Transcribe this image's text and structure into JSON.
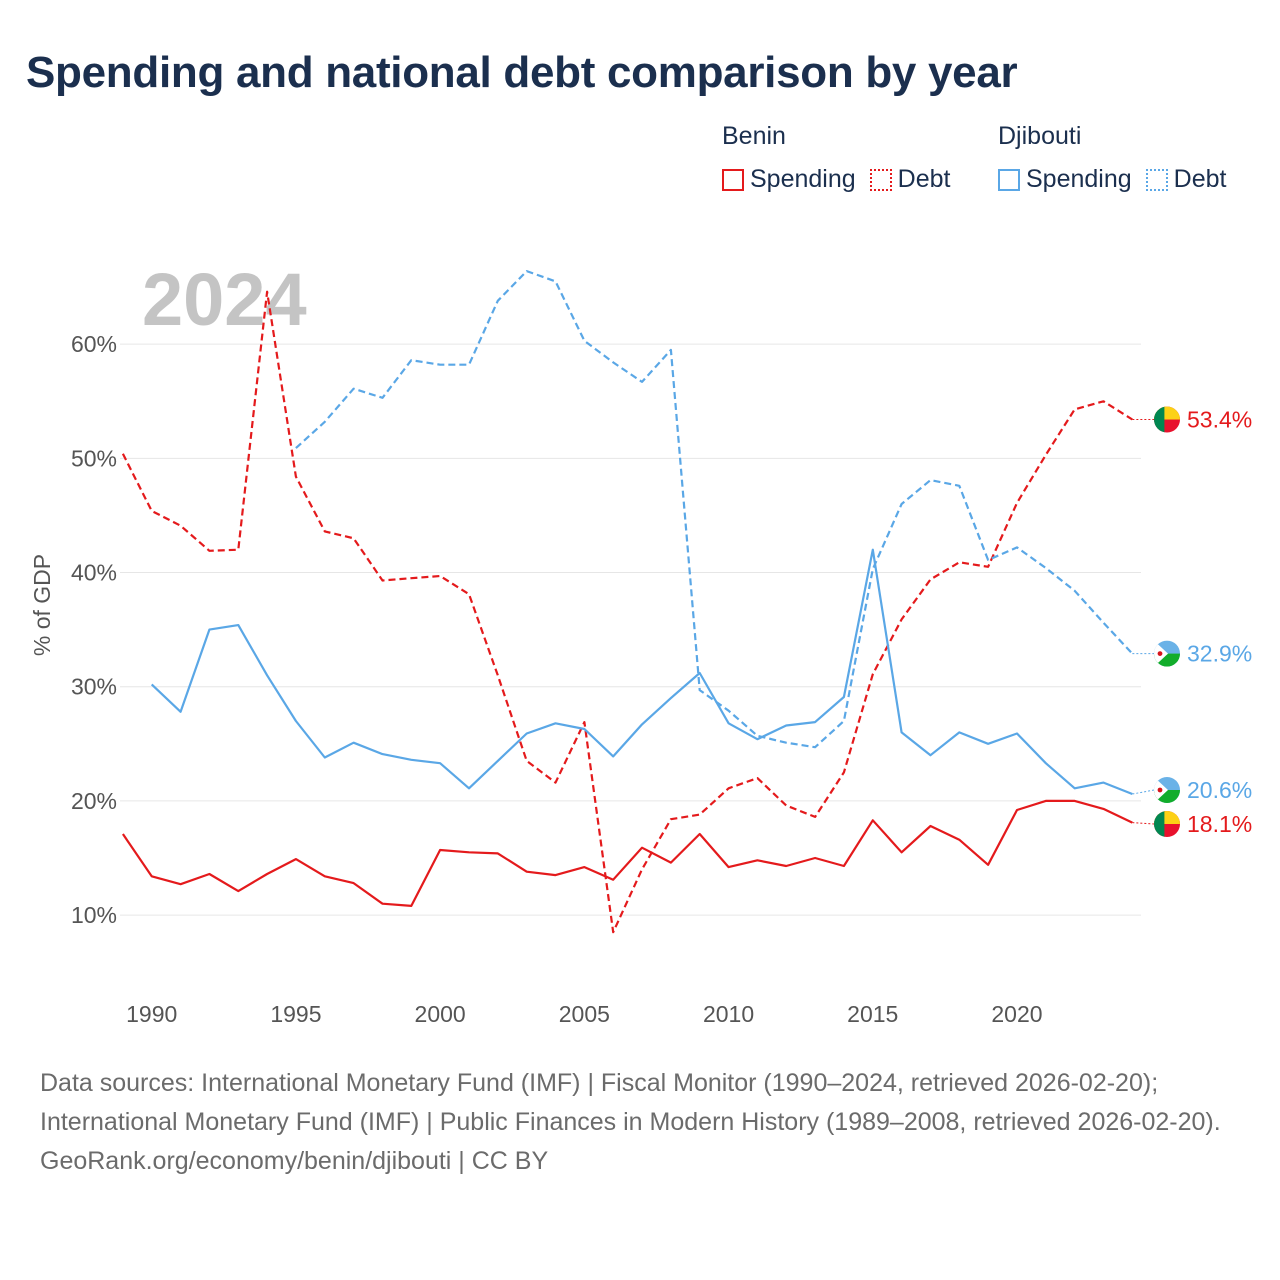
{
  "title": "Spending and national debt comparison by year",
  "legend": {
    "benin": {
      "label": "Benin",
      "spending": "Spending",
      "debt": "Debt"
    },
    "djibouti": {
      "label": "Djibouti",
      "spending": "Spending",
      "debt": "Debt"
    }
  },
  "colors": {
    "benin": "#e41a1c",
    "djibouti": "#5aa7e6",
    "year_watermark": "#c4c4c4",
    "grid": "#e6e6e6"
  },
  "chart_data": {
    "type": "line",
    "year_label": "2024",
    "ylabel": "% of GDP",
    "xlim": [
      1988.9,
      2024.3
    ],
    "ylim": [
      3,
      70
    ],
    "x_ticks": [
      1990,
      1995,
      2000,
      2005,
      2010,
      2015,
      2020
    ],
    "y_ticks": [
      10,
      20,
      30,
      40,
      50,
      60
    ],
    "y_tick_labels": [
      "10%",
      "20%",
      "30%",
      "40%",
      "50%",
      "60%"
    ],
    "series": [
      {
        "name": "Benin Spending",
        "country": "Benin",
        "style": "solid",
        "color": "#e41a1c",
        "end_label": "18.1%",
        "points": [
          [
            1989,
            17.1
          ],
          [
            1990,
            13.4
          ],
          [
            1991,
            12.7
          ],
          [
            1992,
            13.6
          ],
          [
            1993,
            12.1
          ],
          [
            1994,
            13.6
          ],
          [
            1995,
            14.9
          ],
          [
            1996,
            13.4
          ],
          [
            1997,
            12.8
          ],
          [
            1998,
            11.0
          ],
          [
            1999,
            10.8
          ],
          [
            2000,
            15.7
          ],
          [
            2001,
            15.5
          ],
          [
            2002,
            15.4
          ],
          [
            2003,
            13.8
          ],
          [
            2004,
            13.5
          ],
          [
            2005,
            14.2
          ],
          [
            2006,
            13.1
          ],
          [
            2007,
            15.9
          ],
          [
            2008,
            14.6
          ],
          [
            2009,
            17.1
          ],
          [
            2010,
            14.2
          ],
          [
            2011,
            14.8
          ],
          [
            2012,
            14.3
          ],
          [
            2013,
            15.0
          ],
          [
            2014,
            14.3
          ],
          [
            2015,
            18.3
          ],
          [
            2016,
            15.5
          ],
          [
            2017,
            17.8
          ],
          [
            2018,
            16.6
          ],
          [
            2019,
            14.4
          ],
          [
            2020,
            19.2
          ],
          [
            2021,
            20.0
          ],
          [
            2022,
            20.0
          ],
          [
            2023,
            19.3
          ],
          [
            2024,
            18.1
          ]
        ]
      },
      {
        "name": "Benin Debt",
        "country": "Benin",
        "style": "dashed",
        "color": "#e41a1c",
        "end_label": "53.4%",
        "points": [
          [
            1989,
            50.4
          ],
          [
            1990,
            45.4
          ],
          [
            1991,
            44.1
          ],
          [
            1992,
            41.9
          ],
          [
            1993,
            42.0
          ],
          [
            1994,
            64.6
          ],
          [
            1995,
            48.4
          ],
          [
            1996,
            43.6
          ],
          [
            1997,
            43.0
          ],
          [
            1998,
            39.3
          ],
          [
            1999,
            39.5
          ],
          [
            2000,
            39.7
          ],
          [
            2001,
            38.1
          ],
          [
            2002,
            31.0
          ],
          [
            2003,
            23.5
          ],
          [
            2004,
            21.6
          ],
          [
            2005,
            26.9
          ],
          [
            2006,
            8.5
          ],
          [
            2007,
            14.0
          ],
          [
            2008,
            18.4
          ],
          [
            2009,
            18.8
          ],
          [
            2010,
            21.1
          ],
          [
            2011,
            22.0
          ],
          [
            2012,
            19.6
          ],
          [
            2013,
            18.6
          ],
          [
            2014,
            22.5
          ],
          [
            2015,
            31.1
          ],
          [
            2016,
            35.9
          ],
          [
            2017,
            39.4
          ],
          [
            2018,
            40.9
          ],
          [
            2019,
            40.5
          ],
          [
            2020,
            46.1
          ],
          [
            2021,
            50.3
          ],
          [
            2022,
            54.3
          ],
          [
            2023,
            55.0
          ],
          [
            2024,
            53.4
          ]
        ]
      },
      {
        "name": "Djibouti Spending",
        "country": "Djibouti",
        "style": "solid",
        "color": "#5aa7e6",
        "end_label": "20.6%",
        "points": [
          [
            1990,
            30.2
          ],
          [
            1991,
            27.8
          ],
          [
            1992,
            35.0
          ],
          [
            1993,
            35.4
          ],
          [
            1994,
            31.0
          ],
          [
            1995,
            27.0
          ],
          [
            1996,
            23.8
          ],
          [
            1997,
            25.1
          ],
          [
            1998,
            24.1
          ],
          [
            1999,
            23.6
          ],
          [
            2000,
            23.3
          ],
          [
            2001,
            21.1
          ],
          [
            2002,
            23.5
          ],
          [
            2003,
            25.9
          ],
          [
            2004,
            26.8
          ],
          [
            2005,
            26.3
          ],
          [
            2006,
            23.9
          ],
          [
            2007,
            26.7
          ],
          [
            2008,
            29.0
          ],
          [
            2009,
            31.2
          ],
          [
            2010,
            26.8
          ],
          [
            2011,
            25.4
          ],
          [
            2012,
            26.6
          ],
          [
            2013,
            26.9
          ],
          [
            2014,
            29.1
          ],
          [
            2015,
            42.0
          ],
          [
            2016,
            26.0
          ],
          [
            2017,
            24.0
          ],
          [
            2018,
            26.0
          ],
          [
            2019,
            25.0
          ],
          [
            2020,
            25.9
          ],
          [
            2021,
            23.3
          ],
          [
            2022,
            21.1
          ],
          [
            2023,
            21.6
          ],
          [
            2024,
            20.6
          ]
        ]
      },
      {
        "name": "Djibouti Debt",
        "country": "Djibouti",
        "style": "dashed",
        "color": "#5aa7e6",
        "end_label": "32.9%",
        "points": [
          [
            1995,
            50.9
          ],
          [
            1996,
            53.2
          ],
          [
            1997,
            56.1
          ],
          [
            1998,
            55.3
          ],
          [
            1999,
            58.6
          ],
          [
            2000,
            58.2
          ],
          [
            2001,
            58.2
          ],
          [
            2002,
            63.8
          ],
          [
            2003,
            66.4
          ],
          [
            2004,
            65.5
          ],
          [
            2005,
            60.3
          ],
          [
            2006,
            58.4
          ],
          [
            2007,
            56.7
          ],
          [
            2008,
            59.5
          ],
          [
            2009,
            29.7
          ],
          [
            2010,
            27.9
          ],
          [
            2011,
            25.7
          ],
          [
            2012,
            25.1
          ],
          [
            2013,
            24.7
          ],
          [
            2014,
            27.0
          ],
          [
            2015,
            40.3
          ],
          [
            2016,
            46.0
          ],
          [
            2017,
            48.1
          ],
          [
            2018,
            47.6
          ],
          [
            2019,
            41.1
          ],
          [
            2020,
            42.2
          ],
          [
            2021,
            40.4
          ],
          [
            2022,
            38.4
          ],
          [
            2023,
            35.6
          ],
          [
            2024,
            32.9
          ]
        ]
      }
    ]
  },
  "footer": {
    "sources": "Data sources: International Monetary Fund (IMF) | Fiscal Monitor (1990–2024, retrieved 2026-02-20); International Monetary Fund (IMF) | Public Finances in Modern History (1989–2008, retrieved 2026-02-20).",
    "attribution": "GeoRank.org/economy/benin/djibouti | CC BY"
  }
}
